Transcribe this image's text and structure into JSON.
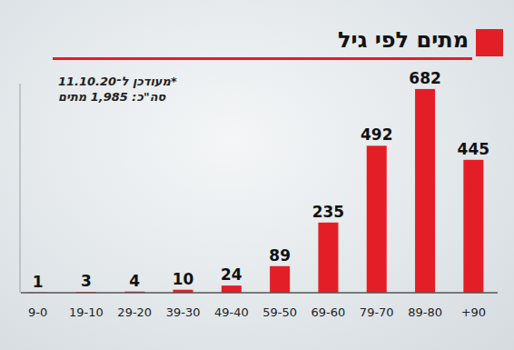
{
  "chart_data": {
    "type": "bar",
    "title": "מתים לפי גיל",
    "annotations": [
      "*מעודכן ל־11.10.20",
      "סה\"כ: 1,985 מתים"
    ],
    "categories": [
      "9-0",
      "19-10",
      "29-20",
      "39-30",
      "49-40",
      "59-50",
      "69-60",
      "79-70",
      "89-80",
      "+90"
    ],
    "values": [
      1,
      3,
      4,
      10,
      24,
      89,
      235,
      492,
      682,
      445
    ],
    "color": "#e41e26",
    "ylim": [
      0,
      700
    ],
    "grid": false,
    "data_labels": true,
    "tick_labels": "x"
  }
}
